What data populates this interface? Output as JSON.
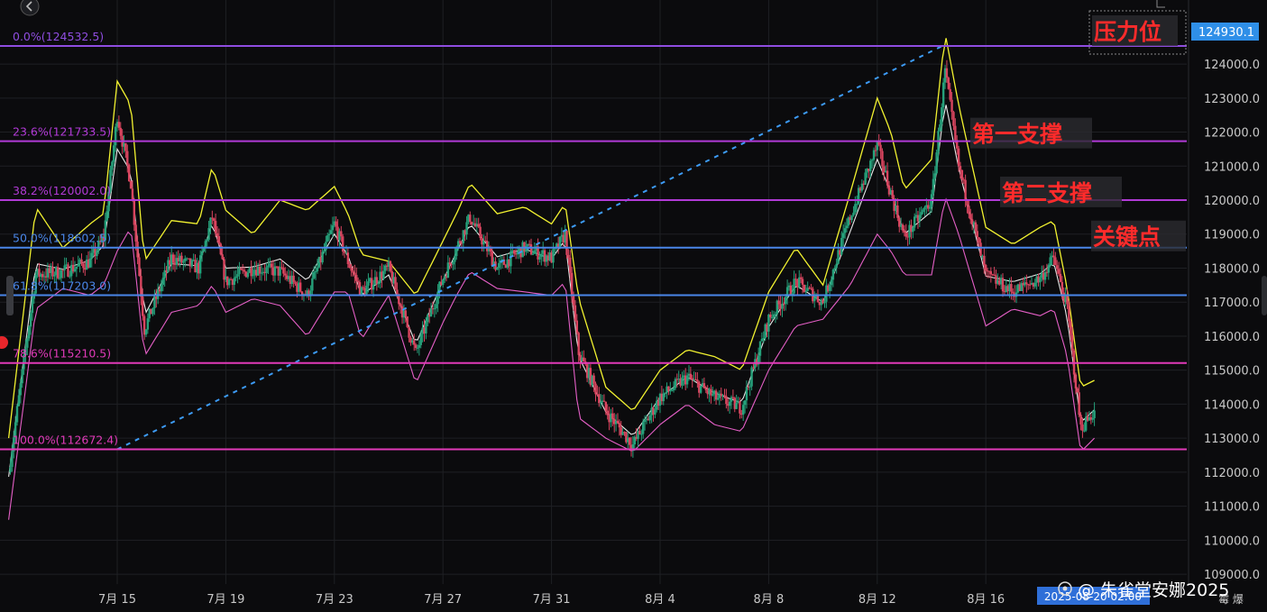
{
  "chart_data": {
    "type": "candlestick",
    "y_axis": {
      "ticks": [
        "124000.0",
        "123000.0",
        "122000.0",
        "121000.0",
        "120000.0",
        "119000.0",
        "118000.0",
        "117000.0",
        "116000.0",
        "115000.0",
        "114000.0",
        "113000.0",
        "112000.0",
        "111000.0",
        "110000.0",
        "109000.0"
      ],
      "range": [
        108700,
        125900
      ],
      "current_price": "124930.1"
    },
    "x_axis": {
      "labels": [
        "7月 15",
        "7月 19",
        "7月 23",
        "7月 27",
        "7月 31",
        "8月 4",
        "8月 8",
        "8月 12",
        "8月 16"
      ],
      "crosshair_label": "2025-08-20 02:00"
    },
    "fib_levels": [
      {
        "label": "0.0%(124532.5)",
        "value": 124532.5,
        "color": "#8f4de0"
      },
      {
        "label": "23.6%(121733.5)",
        "value": 121733.5,
        "color": "#b13ad6"
      },
      {
        "label": "38.2%(120002.0)",
        "value": 120002.0,
        "color": "#b13ad6"
      },
      {
        "label": "50.0%(118602.5)",
        "value": 118602.5,
        "color": "#4a86e8"
      },
      {
        "label": "61.8%(117203.0)",
        "value": 117203.0,
        "color": "#4a86e8"
      },
      {
        "label": "78.6%(115210.5)",
        "value": 115210.5,
        "color": "#e03ab8"
      },
      {
        "label": "100.0%(112672.4)",
        "value": 112672.4,
        "color": "#e03ab8"
      }
    ],
    "annotations": [
      {
        "text": "压力位",
        "level": 124532.5
      },
      {
        "text": "第一支撑",
        "level": 121733.5
      },
      {
        "text": "第二支撑",
        "level": 120002.0
      },
      {
        "text": "关键点",
        "level": 118602.5
      }
    ],
    "trendline": {
      "from_x": "7月 15",
      "from_y": 112672.4,
      "to_x": "8月 14",
      "to_y": 124532.5
    },
    "price_path": {
      "x": [
        "7月 11",
        "7月 12",
        "7月 13",
        "7月 14",
        "7月 14",
        "7月 15",
        "7月 15",
        "7月 16",
        "7月 17",
        "7月 18",
        "7月 18",
        "7月 19",
        "7月 20",
        "7月 21",
        "7月 22",
        "7月 23",
        "7月 23",
        "7月 24",
        "7月 25",
        "7月 26",
        "7月 27",
        "7月 27",
        "7月 28",
        "7月 29",
        "7月 30",
        "7月 31",
        "7月 31",
        "8月 1",
        "8月 2",
        "8月 3",
        "8月 4",
        "8月 5",
        "8月 6",
        "8月 7",
        "8月 8",
        "8月 9",
        "8月 10",
        "8月 11",
        "8月 12",
        "8月 12",
        "8月 13",
        "8月 14",
        "8月 14",
        "8月 15",
        "8月 16",
        "8月 17",
        "8月 18",
        "8月 18",
        "8月 19",
        "8月 19",
        "8月 20"
      ],
      "close": [
        112000,
        117800,
        117900,
        118200,
        118900,
        122500,
        120500,
        116200,
        118300,
        118000,
        119500,
        117600,
        118000,
        117900,
        117200,
        119300,
        118200,
        117300,
        118000,
        115500,
        117700,
        118600,
        119500,
        118000,
        118600,
        118300,
        119000,
        115500,
        113800,
        112800,
        114200,
        114800,
        114200,
        113900,
        116500,
        117600,
        117000,
        119500,
        121600,
        120200,
        118900,
        120000,
        123800,
        121000,
        117800,
        117300,
        117700,
        118300,
        116800,
        113300,
        113800
      ],
      "upper_band": [
        113000,
        119800,
        118600,
        119300,
        119600,
        123500,
        122800,
        118200,
        119400,
        119300,
        121000,
        119700,
        119000,
        120000,
        119700,
        120400,
        119600,
        118400,
        118200,
        117200,
        118800,
        119600,
        120500,
        119600,
        119800,
        119300,
        119900,
        117100,
        114500,
        113800,
        115000,
        115600,
        115400,
        115000,
        117300,
        118600,
        117500,
        120200,
        123000,
        122000,
        120300,
        121200,
        124900,
        122800,
        119200,
        118700,
        119200,
        119400,
        117400,
        114500,
        114700
      ],
      "lower_band": [
        110600,
        116800,
        117400,
        117200,
        117500,
        118500,
        119200,
        115400,
        116700,
        116900,
        117500,
        116700,
        117100,
        116900,
        116000,
        117300,
        117300,
        115900,
        117200,
        114600,
        116400,
        117200,
        117900,
        117400,
        117300,
        117200,
        117600,
        113600,
        113000,
        112600,
        113400,
        114000,
        113400,
        113200,
        115000,
        116300,
        116500,
        117500,
        119000,
        118500,
        117800,
        117800,
        120100,
        119000,
        116300,
        116800,
        116600,
        116800,
        115400,
        112600,
        113000
      ]
    },
    "title": "",
    "xlabel": "",
    "ylabel": ""
  },
  "watermark": "@ 朱雀堂安娜2025",
  "right_panel": {
    "bottom_glyphs": "霉 爆"
  },
  "colors": {
    "background": "#0b0b0d",
    "grid": "#1f2024",
    "candle_up": "#26a17b",
    "candle_down": "#d9455f",
    "upper_band": "#f2f230",
    "mid_band": "#e8e8e8",
    "lower_band": "#e45fc6",
    "trendline": "#3d9bf5",
    "price_tag": "#2f8fe8"
  }
}
